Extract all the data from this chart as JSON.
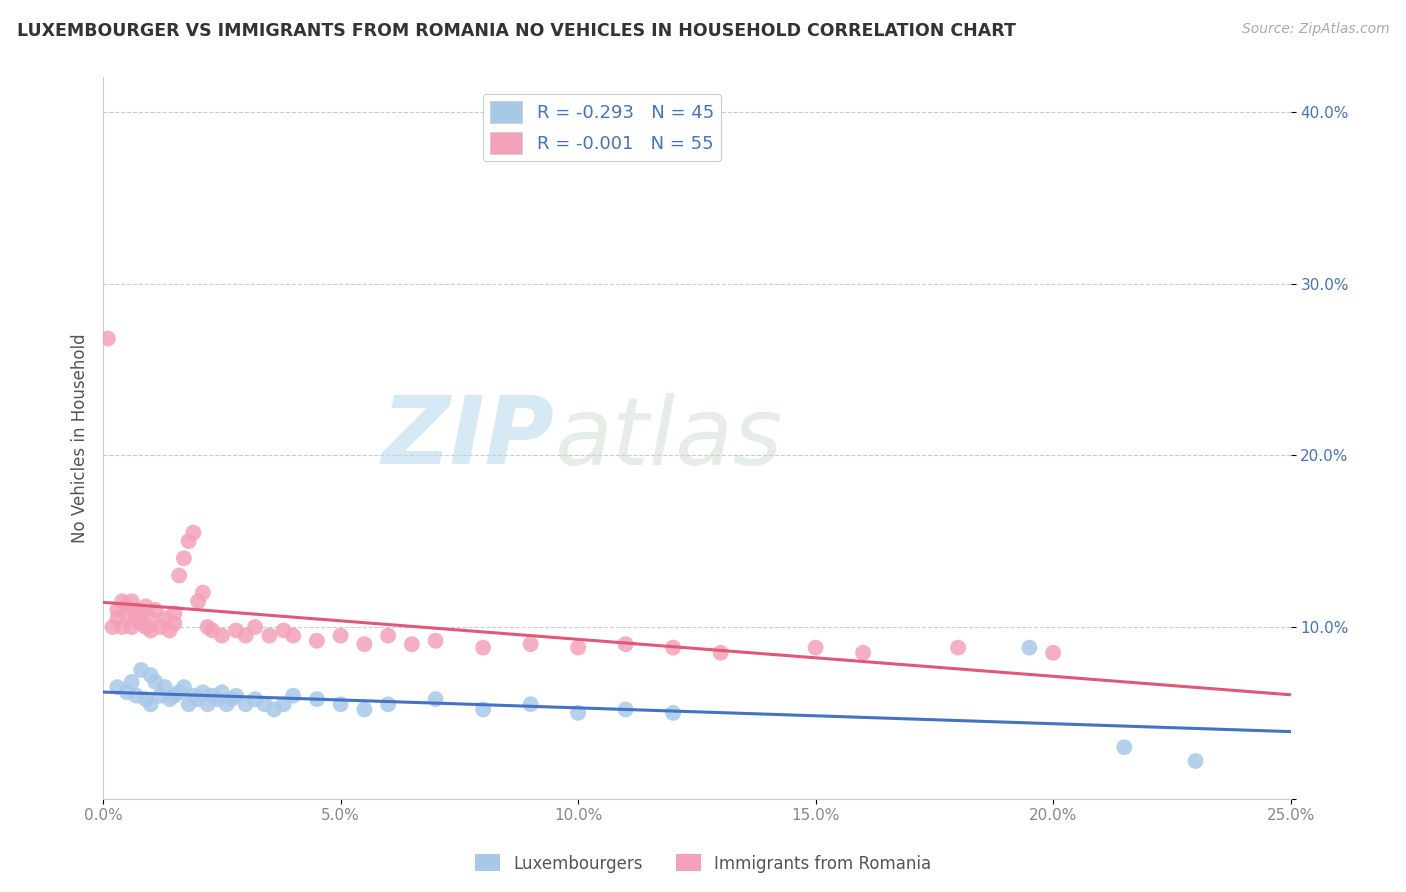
{
  "title": "LUXEMBOURGER VS IMMIGRANTS FROM ROMANIA NO VEHICLES IN HOUSEHOLD CORRELATION CHART",
  "source_text": "Source: ZipAtlas.com",
  "ylabel": "No Vehicles in Household",
  "xlim": [
    0.0,
    0.25
  ],
  "ylim": [
    0.0,
    0.42
  ],
  "xticks": [
    0.0,
    0.05,
    0.1,
    0.15,
    0.2,
    0.25
  ],
  "xticklabels": [
    "0.0%",
    "5.0%",
    "10.0%",
    "15.0%",
    "20.0%",
    "25.0%"
  ],
  "yticks": [
    0.0,
    0.1,
    0.2,
    0.3,
    0.4
  ],
  "yticklabels": [
    "",
    "10.0%",
    "20.0%",
    "30.0%",
    "40.0%"
  ],
  "blue_color": "#a8c8e8",
  "pink_color": "#f4a0b8",
  "blue_line_color": "#4472c4",
  "pink_line_color": "#e05878",
  "legend_blue_label": "R = -0.293   N = 45",
  "legend_pink_label": "R = -0.001   N = 55",
  "watermark_zip": "ZIP",
  "watermark_atlas": "atlas",
  "blue_scatter_x": [
    0.003,
    0.005,
    0.006,
    0.007,
    0.008,
    0.009,
    0.01,
    0.01,
    0.011,
    0.012,
    0.013,
    0.014,
    0.015,
    0.016,
    0.017,
    0.018,
    0.019,
    0.02,
    0.021,
    0.022,
    0.023,
    0.024,
    0.025,
    0.026,
    0.027,
    0.028,
    0.03,
    0.032,
    0.034,
    0.036,
    0.038,
    0.04,
    0.045,
    0.05,
    0.055,
    0.06,
    0.07,
    0.08,
    0.09,
    0.1,
    0.11,
    0.12,
    0.195,
    0.215,
    0.23
  ],
  "blue_scatter_y": [
    0.065,
    0.062,
    0.068,
    0.06,
    0.075,
    0.058,
    0.072,
    0.055,
    0.068,
    0.06,
    0.065,
    0.058,
    0.06,
    0.062,
    0.065,
    0.055,
    0.06,
    0.058,
    0.062,
    0.055,
    0.06,
    0.058,
    0.062,
    0.055,
    0.058,
    0.06,
    0.055,
    0.058,
    0.055,
    0.052,
    0.055,
    0.06,
    0.058,
    0.055,
    0.052,
    0.055,
    0.058,
    0.052,
    0.055,
    0.05,
    0.052,
    0.05,
    0.088,
    0.03,
    0.022
  ],
  "pink_scatter_x": [
    0.001,
    0.002,
    0.003,
    0.003,
    0.004,
    0.004,
    0.005,
    0.005,
    0.006,
    0.006,
    0.007,
    0.007,
    0.008,
    0.008,
    0.009,
    0.009,
    0.01,
    0.01,
    0.011,
    0.012,
    0.013,
    0.014,
    0.015,
    0.015,
    0.016,
    0.017,
    0.018,
    0.019,
    0.02,
    0.021,
    0.022,
    0.023,
    0.025,
    0.028,
    0.03,
    0.032,
    0.035,
    0.038,
    0.04,
    0.045,
    0.05,
    0.055,
    0.06,
    0.065,
    0.07,
    0.08,
    0.09,
    0.1,
    0.11,
    0.12,
    0.13,
    0.15,
    0.16,
    0.18,
    0.2
  ],
  "pink_scatter_y": [
    0.268,
    0.1,
    0.105,
    0.11,
    0.115,
    0.1,
    0.108,
    0.112,
    0.1,
    0.115,
    0.105,
    0.11,
    0.102,
    0.108,
    0.1,
    0.112,
    0.098,
    0.105,
    0.11,
    0.1,
    0.105,
    0.098,
    0.102,
    0.108,
    0.13,
    0.14,
    0.15,
    0.155,
    0.115,
    0.12,
    0.1,
    0.098,
    0.095,
    0.098,
    0.095,
    0.1,
    0.095,
    0.098,
    0.095,
    0.092,
    0.095,
    0.09,
    0.095,
    0.09,
    0.092,
    0.088,
    0.09,
    0.088,
    0.09,
    0.088,
    0.085,
    0.088,
    0.085,
    0.088,
    0.085
  ],
  "background_color": "#ffffff",
  "grid_color": "#cccccc"
}
